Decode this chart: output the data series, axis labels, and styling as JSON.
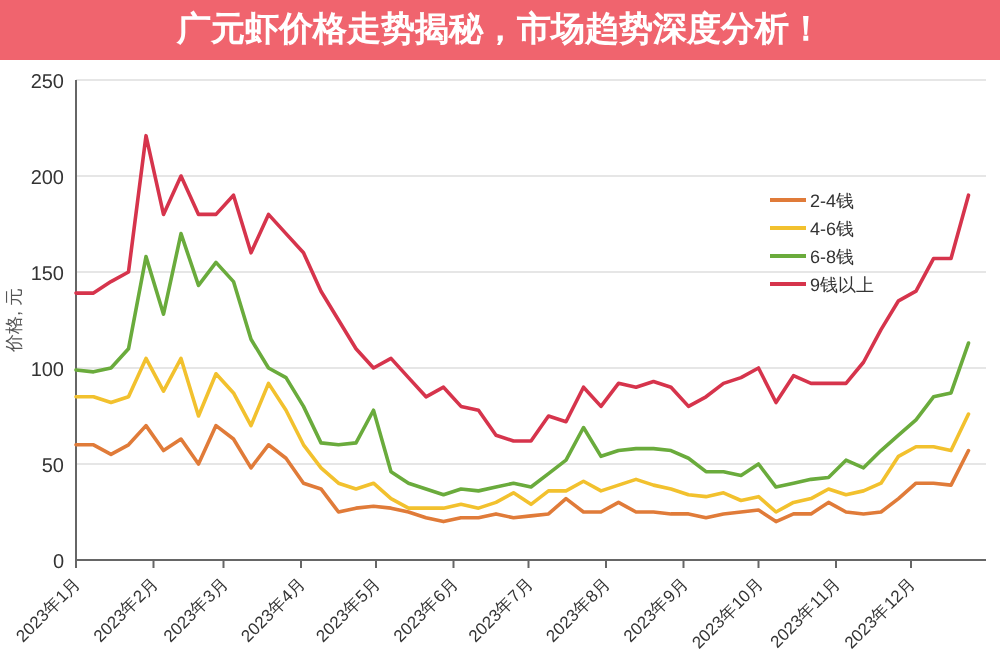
{
  "chart_data": {
    "type": "line",
    "title": "广元虾价格走势揭秘，市场趋势深度分析！",
    "ylabel": "价格, 元",
    "x": [
      "2023-01-01",
      "2023-01-08",
      "2023-01-15",
      "2023-01-22",
      "2023-01-29",
      "2023-02-05",
      "2023-02-12",
      "2023-02-19",
      "2023-02-26",
      "2023-03-05",
      "2023-03-12",
      "2023-03-19",
      "2023-03-26",
      "2023-04-02",
      "2023-04-09",
      "2023-04-16",
      "2023-04-23",
      "2023-04-30",
      "2023-05-07",
      "2023-05-14",
      "2023-05-21",
      "2023-05-28",
      "2023-06-04",
      "2023-06-11",
      "2023-06-18",
      "2023-06-25",
      "2023-07-02",
      "2023-07-09",
      "2023-07-16",
      "2023-07-23",
      "2023-07-30",
      "2023-08-06",
      "2023-08-13",
      "2023-08-20",
      "2023-08-27",
      "2023-09-03",
      "2023-09-10",
      "2023-09-17",
      "2023-09-24",
      "2023-10-01",
      "2023-10-08",
      "2023-10-15",
      "2023-10-22",
      "2023-10-29",
      "2023-11-05",
      "2023-11-12",
      "2023-11-19",
      "2023-11-26",
      "2023-12-03",
      "2023-12-10",
      "2023-12-17",
      "2023-12-24"
    ],
    "series": [
      {
        "name": "2-4钱",
        "color": "#e07b39",
        "values": [
          60,
          60,
          55,
          60,
          70,
          57,
          63,
          50,
          70,
          63,
          48,
          60,
          53,
          40,
          37,
          25,
          27,
          28,
          27,
          25,
          22,
          20,
          22,
          22,
          24,
          22,
          23,
          24,
          32,
          25,
          25,
          30,
          25,
          25,
          24,
          24,
          22,
          24,
          25,
          26,
          20,
          24,
          24,
          30,
          25,
          24,
          25,
          32,
          40,
          40,
          39,
          57
        ]
      },
      {
        "name": "4-6钱",
        "color": "#f2c12e",
        "values": [
          85,
          85,
          82,
          85,
          105,
          88,
          105,
          75,
          97,
          87,
          70,
          92,
          78,
          60,
          48,
          40,
          37,
          40,
          32,
          27,
          27,
          27,
          29,
          27,
          30,
          35,
          29,
          36,
          36,
          41,
          36,
          39,
          42,
          39,
          37,
          34,
          33,
          35,
          31,
          33,
          25,
          30,
          32,
          37,
          34,
          36,
          40,
          54,
          59,
          59,
          57,
          76
        ]
      },
      {
        "name": "6-8钱",
        "color": "#6aab3c",
        "values": [
          99,
          98,
          100,
          110,
          158,
          128,
          170,
          143,
          155,
          145,
          115,
          100,
          95,
          80,
          61,
          60,
          61,
          78,
          46,
          40,
          37,
          34,
          37,
          36,
          38,
          40,
          38,
          45,
          52,
          69,
          54,
          57,
          58,
          58,
          57,
          53,
          46,
          46,
          44,
          50,
          38,
          40,
          42,
          43,
          52,
          48,
          57,
          65,
          73,
          85,
          87,
          113
        ]
      },
      {
        "name": "9钱以上",
        "color": "#d6344c",
        "values": [
          139,
          139,
          145,
          150,
          221,
          180,
          200,
          180,
          180,
          190,
          160,
          180,
          170,
          160,
          140,
          125,
          110,
          100,
          105,
          95,
          85,
          90,
          80,
          78,
          65,
          62,
          62,
          75,
          72,
          90,
          80,
          92,
          90,
          93,
          90,
          80,
          85,
          92,
          95,
          100,
          82,
          96,
          92,
          92,
          92,
          103,
          120,
          135,
          140,
          157,
          157,
          190
        ]
      }
    ],
    "xlim": [
      "2023-01-01",
      "2023-12-31"
    ],
    "xticks": [
      {
        "value": "2023-01-01",
        "label": "2023年1月"
      },
      {
        "value": "2023-02-01",
        "label": "2023年2月"
      },
      {
        "value": "2023-03-01",
        "label": "2023年3月"
      },
      {
        "value": "2023-04-01",
        "label": "2023年4月"
      },
      {
        "value": "2023-05-01",
        "label": "2023年5月"
      },
      {
        "value": "2023-06-01",
        "label": "2023年6月"
      },
      {
        "value": "2023-07-01",
        "label": "2023年7月"
      },
      {
        "value": "2023-08-01",
        "label": "2023年8月"
      },
      {
        "value": "2023-09-01",
        "label": "2023年9月"
      },
      {
        "value": "2023-10-01",
        "label": "2023年10月"
      },
      {
        "value": "2023-11-01",
        "label": "2023年11月"
      },
      {
        "value": "2023-12-01",
        "label": "2023年12月"
      }
    ],
    "ylim": [
      0,
      250
    ],
    "yticks": [
      0,
      50,
      100,
      150,
      200,
      250
    ],
    "grid": "y",
    "legend": "top right"
  }
}
